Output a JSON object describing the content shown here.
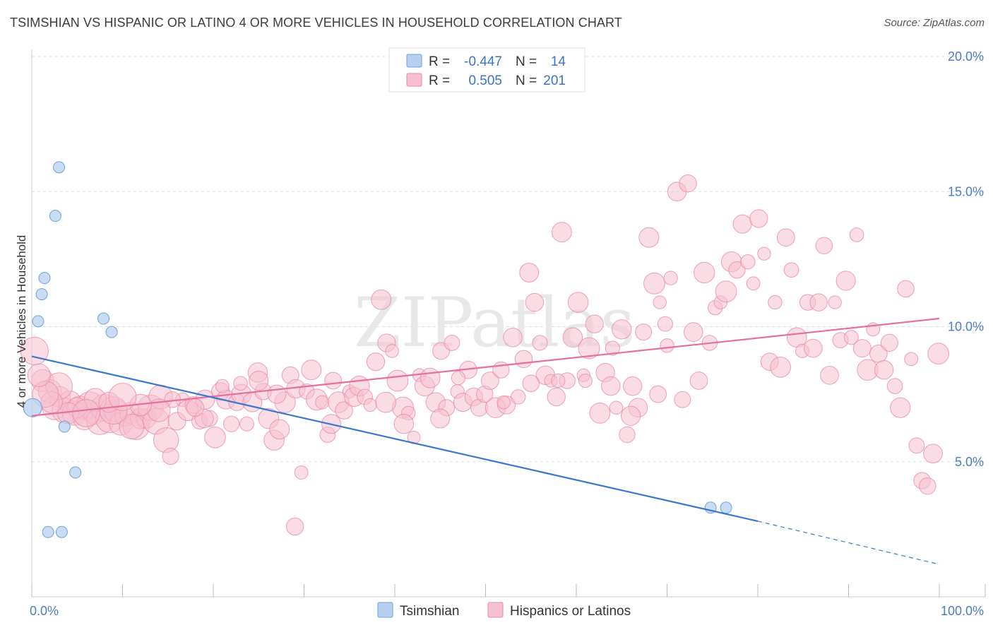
{
  "title": "TSIMSHIAN VS HISPANIC OR LATINO 4 OR MORE VEHICLES IN HOUSEHOLD CORRELATION CHART",
  "source": "Source: ZipAtlas.com",
  "watermark": "ZIPatlas",
  "colors": {
    "blue_fill": "#b8d0f0",
    "blue_stroke": "#6f9fd8",
    "blue_line": "#3a78d0",
    "pink_fill": "#f6c0d0",
    "pink_stroke": "#e88aa8",
    "pink_line": "#e5709a",
    "tick_text": "#4a7cc6",
    "grid": "#dddddd"
  },
  "legend": {
    "rows": [
      {
        "r_label": "R =",
        "r_value": "-0.447",
        "n_label": "N =",
        "n_value": "14"
      },
      {
        "r_label": "R =",
        "r_value": "0.505",
        "n_label": "N =",
        "n_value": "201"
      }
    ]
  },
  "bottom_legend": [
    "Tsimshian",
    "Hispanics or Latinos"
  ],
  "chart_data": {
    "type": "scatter",
    "title": "TSIMSHIAN VS HISPANIC OR LATINO 4 OR MORE VEHICLES IN HOUSEHOLD CORRELATION CHART",
    "xlabel": "",
    "ylabel": "4 or more Vehicles in Household",
    "xlim": [
      0,
      100
    ],
    "ylim": [
      0,
      20
    ],
    "x_tick_labels": [
      "0.0%",
      "100.0%"
    ],
    "y_ticks": [
      5,
      10,
      15,
      20
    ],
    "y_tick_labels": [
      "5.0%",
      "10.0%",
      "15.0%",
      "20.0%"
    ],
    "grid": "horizontal dashed",
    "legend_position": "top-center",
    "series": [
      {
        "name": "Tsimshian",
        "r": -0.447,
        "n": 14,
        "trend": {
          "x0": 0,
          "y0": 8.9,
          "x1": 80,
          "y1": 2.8,
          "dashed_to_x": 100,
          "dashed_to_y": 1.2
        },
        "points": [
          [
            0.1,
            7.0
          ],
          [
            0.7,
            10.2
          ],
          [
            1.1,
            11.2
          ],
          [
            1.4,
            11.8
          ],
          [
            2.6,
            14.1
          ],
          [
            3.0,
            15.9
          ],
          [
            3.6,
            6.3
          ],
          [
            4.8,
            4.6
          ],
          [
            7.9,
            10.3
          ],
          [
            8.8,
            9.8
          ],
          [
            1.8,
            2.4
          ],
          [
            3.3,
            2.4
          ],
          [
            74.8,
            3.3
          ],
          [
            76.5,
            3.3
          ]
        ]
      },
      {
        "name": "Hispanics or Latinos",
        "r": 0.505,
        "n": 201,
        "trend": {
          "x0": 0,
          "y0": 6.7,
          "x1": 100,
          "y1": 10.3
        },
        "points": [
          [
            0.3,
            9.1
          ],
          [
            1.2,
            8.0
          ],
          [
            2.0,
            7.6
          ],
          [
            2.5,
            7.0
          ],
          [
            3.1,
            7.4
          ],
          [
            3.6,
            6.9
          ],
          [
            4.2,
            7.2
          ],
          [
            4.7,
            6.8
          ],
          [
            5.3,
            7.0
          ],
          [
            5.8,
            6.6
          ],
          [
            6.4,
            7.1
          ],
          [
            6.9,
            6.8
          ],
          [
            7.5,
            6.5
          ],
          [
            8.0,
            7.0
          ],
          [
            8.6,
            6.6
          ],
          [
            9.2,
            6.9
          ],
          [
            9.8,
            6.4
          ],
          [
            10.3,
            6.7
          ],
          [
            10.9,
            6.8
          ],
          [
            11.5,
            6.3
          ],
          [
            12.0,
            6.6
          ],
          [
            12.6,
            6.6
          ],
          [
            13.1,
            7.0
          ],
          [
            13.7,
            6.5
          ],
          [
            14.2,
            7.4
          ],
          [
            14.8,
            5.8
          ],
          [
            15.3,
            5.2
          ],
          [
            16.0,
            6.5
          ],
          [
            16.6,
            7.3
          ],
          [
            17.2,
            6.9
          ],
          [
            17.8,
            7.1
          ],
          [
            18.5,
            6.5
          ],
          [
            19.1,
            7.3
          ],
          [
            19.6,
            6.6
          ],
          [
            20.2,
            5.9
          ],
          [
            20.8,
            7.6
          ],
          [
            21.4,
            7.3
          ],
          [
            22.0,
            6.4
          ],
          [
            22.6,
            7.2
          ],
          [
            23.1,
            7.5
          ],
          [
            23.7,
            6.4
          ],
          [
            24.3,
            7.2
          ],
          [
            24.9,
            8.3
          ],
          [
            25.5,
            7.6
          ],
          [
            26.1,
            6.6
          ],
          [
            26.7,
            5.8
          ],
          [
            27.3,
            6.2
          ],
          [
            27.9,
            7.2
          ],
          [
            28.5,
            8.2
          ],
          [
            29.1,
            7.7
          ],
          [
            29.7,
            4.6
          ],
          [
            30.3,
            7.6
          ],
          [
            30.8,
            8.4
          ],
          [
            31.4,
            7.3
          ],
          [
            32.0,
            7.2
          ],
          [
            32.6,
            6.0
          ],
          [
            33.2,
            8.0
          ],
          [
            33.8,
            7.2
          ],
          [
            34.4,
            6.9
          ],
          [
            35.0,
            7.6
          ],
          [
            35.5,
            7.4
          ],
          [
            36.1,
            7.8
          ],
          [
            36.7,
            7.4
          ],
          [
            37.3,
            7.1
          ],
          [
            37.9,
            8.7
          ],
          [
            38.5,
            11.0
          ],
          [
            39.1,
            9.4
          ],
          [
            39.7,
            9.1
          ],
          [
            40.3,
            8.0
          ],
          [
            40.9,
            7.0
          ],
          [
            41.5,
            6.8
          ],
          [
            42.1,
            5.9
          ],
          [
            42.7,
            8.2
          ],
          [
            43.3,
            7.8
          ],
          [
            43.9,
            8.1
          ],
          [
            44.5,
            7.2
          ],
          [
            45.1,
            9.1
          ],
          [
            45.7,
            7.0
          ],
          [
            46.3,
            9.4
          ],
          [
            46.9,
            7.6
          ],
          [
            47.5,
            7.2
          ],
          [
            48.1,
            8.4
          ],
          [
            48.7,
            7.4
          ],
          [
            49.3,
            7.0
          ],
          [
            49.9,
            7.5
          ],
          [
            50.5,
            8.0
          ],
          [
            51.1,
            7.0
          ],
          [
            51.7,
            8.4
          ],
          [
            52.3,
            7.1
          ],
          [
            53.0,
            9.6
          ],
          [
            53.6,
            7.4
          ],
          [
            54.2,
            8.8
          ],
          [
            54.8,
            12.0
          ],
          [
            55.4,
            10.9
          ],
          [
            56.0,
            9.4
          ],
          [
            56.6,
            8.2
          ],
          [
            57.2,
            8.0
          ],
          [
            57.8,
            7.4
          ],
          [
            58.4,
            13.5
          ],
          [
            59.0,
            8.0
          ],
          [
            59.6,
            9.6
          ],
          [
            60.2,
            10.9
          ],
          [
            60.8,
            8.2
          ],
          [
            61.4,
            9.2
          ],
          [
            62.0,
            10.1
          ],
          [
            62.6,
            6.8
          ],
          [
            63.2,
            8.3
          ],
          [
            63.8,
            7.8
          ],
          [
            64.4,
            7.0
          ],
          [
            65.0,
            9.9
          ],
          [
            65.6,
            6.0
          ],
          [
            66.2,
            7.8
          ],
          [
            66.8,
            7.0
          ],
          [
            67.4,
            9.8
          ],
          [
            68.0,
            13.3
          ],
          [
            68.6,
            11.6
          ],
          [
            69.2,
            10.9
          ],
          [
            69.8,
            10.1
          ],
          [
            70.4,
            11.8
          ],
          [
            71.1,
            15.0
          ],
          [
            71.7,
            7.3
          ],
          [
            72.3,
            15.3
          ],
          [
            72.9,
            9.8
          ],
          [
            73.5,
            8.0
          ],
          [
            74.1,
            12.0
          ],
          [
            74.7,
            9.4
          ],
          [
            75.3,
            10.7
          ],
          [
            75.9,
            10.9
          ],
          [
            76.5,
            11.3
          ],
          [
            77.1,
            12.4
          ],
          [
            77.7,
            12.1
          ],
          [
            78.3,
            13.8
          ],
          [
            78.9,
            12.4
          ],
          [
            79.5,
            11.6
          ],
          [
            80.1,
            14.0
          ],
          [
            80.7,
            12.7
          ],
          [
            81.3,
            8.7
          ],
          [
            81.9,
            10.9
          ],
          [
            82.5,
            8.5
          ],
          [
            83.1,
            13.3
          ],
          [
            83.7,
            12.1
          ],
          [
            84.3,
            9.6
          ],
          [
            84.9,
            9.1
          ],
          [
            85.5,
            10.9
          ],
          [
            86.1,
            9.2
          ],
          [
            86.7,
            10.9
          ],
          [
            87.3,
            13.0
          ],
          [
            87.9,
            8.2
          ],
          [
            88.5,
            10.9
          ],
          [
            89.1,
            9.5
          ],
          [
            89.7,
            11.7
          ],
          [
            90.3,
            9.6
          ],
          [
            90.9,
            13.4
          ],
          [
            91.5,
            9.2
          ],
          [
            92.1,
            8.4
          ],
          [
            92.7,
            9.9
          ],
          [
            93.3,
            9.0
          ],
          [
            93.9,
            8.4
          ],
          [
            94.5,
            9.4
          ],
          [
            95.1,
            7.8
          ],
          [
            95.7,
            7.0
          ],
          [
            96.3,
            11.4
          ],
          [
            96.9,
            8.8
          ],
          [
            97.5,
            5.6
          ],
          [
            98.1,
            4.3
          ],
          [
            98.7,
            4.1
          ],
          [
            99.3,
            5.3
          ],
          [
            99.9,
            9.0
          ],
          [
            39.0,
            7.2
          ],
          [
            41.0,
            6.4
          ],
          [
            45.0,
            6.6
          ],
          [
            47.0,
            8.1
          ],
          [
            52.0,
            7.2
          ],
          [
            55.0,
            7.9
          ],
          [
            58.0,
            8.0
          ],
          [
            61.0,
            8.0
          ],
          [
            64.0,
            9.2
          ],
          [
            66.0,
            6.7
          ],
          [
            69.0,
            7.5
          ],
          [
            70.0,
            9.3
          ],
          [
            33.0,
            6.4
          ],
          [
            29.0,
            2.6
          ],
          [
            27.0,
            7.5
          ],
          [
            25.0,
            8.0
          ],
          [
            23.0,
            7.9
          ],
          [
            21.0,
            7.8
          ],
          [
            19.0,
            6.6
          ],
          [
            18.0,
            7.0
          ],
          [
            15.5,
            7.3
          ],
          [
            14.0,
            6.9
          ],
          [
            12.0,
            7.1
          ],
          [
            11.0,
            6.3
          ],
          [
            9.0,
            6.9
          ],
          [
            7.0,
            7.3
          ],
          [
            5.0,
            7.0
          ],
          [
            4.0,
            6.8
          ],
          [
            3.0,
            7.8
          ],
          [
            2.2,
            7.2
          ],
          [
            1.5,
            7.5
          ],
          [
            0.8,
            8.2
          ],
          [
            6.0,
            6.8
          ],
          [
            8.5,
            7.2
          ],
          [
            10.0,
            7.4
          ]
        ]
      }
    ]
  }
}
